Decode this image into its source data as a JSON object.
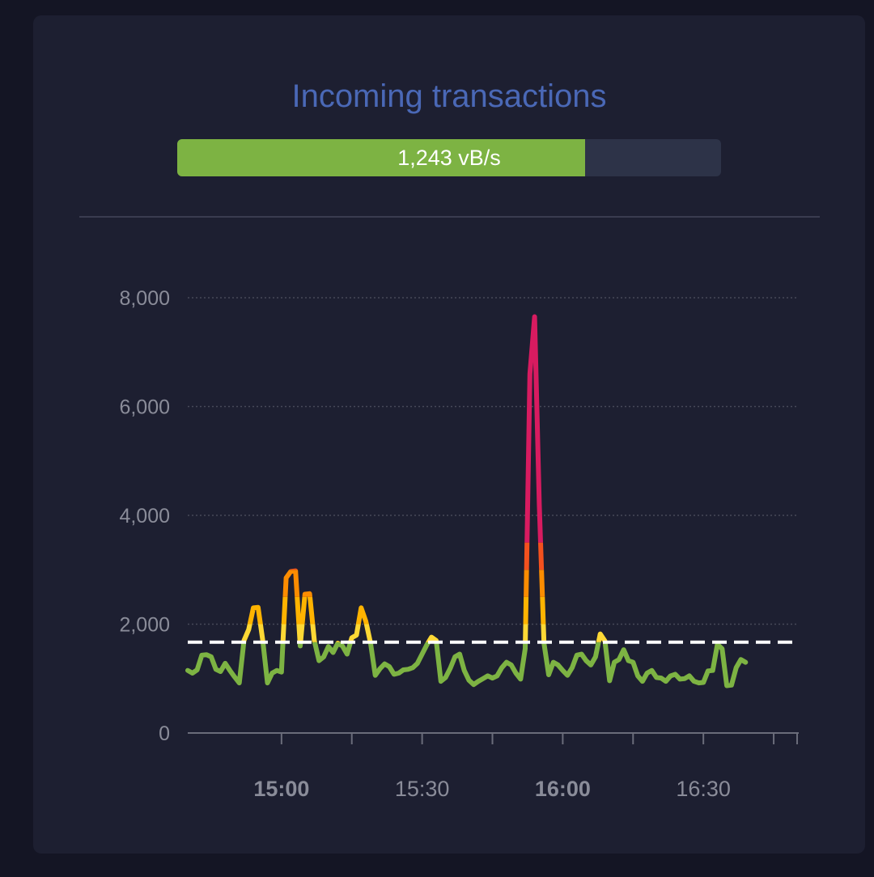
{
  "header": {
    "title": "Incoming transactions"
  },
  "rate": {
    "label": "1,243 vB/s",
    "fraction": 0.75
  },
  "chart_data": {
    "type": "line",
    "ylim": [
      0,
      8000
    ],
    "y_ticks": [
      {
        "value": 0,
        "label": "0"
      },
      {
        "value": 2000,
        "label": "2,000"
      },
      {
        "value": 4000,
        "label": "4,000"
      },
      {
        "value": 6000,
        "label": "6,000"
      },
      {
        "value": 8000,
        "label": "8,000"
      }
    ],
    "x_range": [
      "14:40",
      "16:50"
    ],
    "x_ticks": [
      {
        "time": "15:00",
        "label": "15:00",
        "bold": true
      },
      {
        "time": "15:30",
        "label": "15:30",
        "bold": false
      },
      {
        "time": "16:00",
        "label": "16:00",
        "bold": true
      },
      {
        "time": "16:30",
        "label": "16:30",
        "bold": false
      }
    ],
    "minor_ticks": [
      "15:15",
      "15:45",
      "16:15",
      "16:45"
    ],
    "threshold": 1670,
    "color_bands": [
      {
        "min": 0,
        "max": 1670,
        "color": "#7db343"
      },
      {
        "min": 1670,
        "max": 2000,
        "color": "#fdd835"
      },
      {
        "min": 2000,
        "max": 2500,
        "color": "#ffb300"
      },
      {
        "min": 2500,
        "max": 3000,
        "color": "#fb8c00"
      },
      {
        "min": 3000,
        "max": 3500,
        "color": "#f4511e"
      },
      {
        "min": 3500,
        "max": 9000,
        "color": "#d81b60"
      }
    ],
    "grid": true,
    "series": [
      {
        "points": [
          [
            "14:40",
            1150
          ],
          [
            "14:41",
            1100
          ],
          [
            "14:42",
            1160
          ],
          [
            "14:43",
            1430
          ],
          [
            "14:44",
            1440
          ],
          [
            "14:45",
            1400
          ],
          [
            "14:46",
            1170
          ],
          [
            "14:47",
            1130
          ],
          [
            "14:48",
            1280
          ],
          [
            "14:49",
            1150
          ],
          [
            "14:50",
            1030
          ],
          [
            "14:51",
            920
          ],
          [
            "14:52",
            1700
          ],
          [
            "14:53",
            1900
          ],
          [
            "14:54",
            2300
          ],
          [
            "14:55",
            2310
          ],
          [
            "14:56",
            1700
          ],
          [
            "14:57",
            920
          ],
          [
            "14:58",
            1100
          ],
          [
            "14:59",
            1150
          ],
          [
            "15:00",
            1120
          ],
          [
            "15:01",
            2850
          ],
          [
            "15:02",
            2970
          ],
          [
            "15:03",
            2980
          ],
          [
            "15:04",
            1600
          ],
          [
            "15:05",
            2550
          ],
          [
            "15:06",
            2560
          ],
          [
            "15:07",
            1700
          ],
          [
            "15:08",
            1330
          ],
          [
            "15:09",
            1400
          ],
          [
            "15:10",
            1590
          ],
          [
            "15:11",
            1480
          ],
          [
            "15:12",
            1650
          ],
          [
            "15:13",
            1600
          ],
          [
            "15:14",
            1450
          ],
          [
            "15:15",
            1750
          ],
          [
            "15:16",
            1800
          ],
          [
            "15:17",
            2300
          ],
          [
            "15:18",
            2050
          ],
          [
            "15:19",
            1650
          ],
          [
            "15:20",
            1060
          ],
          [
            "15:21",
            1180
          ],
          [
            "15:22",
            1270
          ],
          [
            "15:23",
            1220
          ],
          [
            "15:24",
            1080
          ],
          [
            "15:25",
            1100
          ],
          [
            "15:26",
            1160
          ],
          [
            "15:27",
            1170
          ],
          [
            "15:28",
            1200
          ],
          [
            "15:29",
            1280
          ],
          [
            "15:30",
            1450
          ],
          [
            "15:31",
            1620
          ],
          [
            "15:32",
            1760
          ],
          [
            "15:33",
            1700
          ],
          [
            "15:34",
            950
          ],
          [
            "15:35",
            1020
          ],
          [
            "15:36",
            1190
          ],
          [
            "15:37",
            1400
          ],
          [
            "15:38",
            1450
          ],
          [
            "15:39",
            1150
          ],
          [
            "15:40",
            970
          ],
          [
            "15:41",
            890
          ],
          [
            "15:42",
            950
          ],
          [
            "15:43",
            1000
          ],
          [
            "15:44",
            1050
          ],
          [
            "15:45",
            1010
          ],
          [
            "15:46",
            1050
          ],
          [
            "15:47",
            1200
          ],
          [
            "15:48",
            1300
          ],
          [
            "15:49",
            1250
          ],
          [
            "15:50",
            1100
          ],
          [
            "15:51",
            990
          ],
          [
            "15:52",
            1550
          ],
          [
            "15:53",
            6600
          ],
          [
            "15:54",
            7650
          ],
          [
            "15:55",
            4200
          ],
          [
            "15:56",
            1650
          ],
          [
            "15:57",
            1070
          ],
          [
            "15:58",
            1300
          ],
          [
            "15:59",
            1250
          ],
          [
            "16:00",
            1150
          ],
          [
            "16:01",
            1060
          ],
          [
            "16:02",
            1200
          ],
          [
            "16:03",
            1430
          ],
          [
            "16:04",
            1450
          ],
          [
            "16:05",
            1330
          ],
          [
            "16:06",
            1250
          ],
          [
            "16:07",
            1400
          ],
          [
            "16:08",
            1820
          ],
          [
            "16:09",
            1690
          ],
          [
            "16:10",
            960
          ],
          [
            "16:11",
            1300
          ],
          [
            "16:12",
            1350
          ],
          [
            "16:13",
            1530
          ],
          [
            "16:14",
            1330
          ],
          [
            "16:15",
            1300
          ],
          [
            "16:16",
            1050
          ],
          [
            "16:17",
            950
          ],
          [
            "16:18",
            1100
          ],
          [
            "16:19",
            1150
          ],
          [
            "16:20",
            1020
          ],
          [
            "16:21",
            1010
          ],
          [
            "16:22",
            950
          ],
          [
            "16:23",
            1050
          ],
          [
            "16:24",
            1080
          ],
          [
            "16:25",
            990
          ],
          [
            "16:26",
            1000
          ],
          [
            "16:27",
            1050
          ],
          [
            "16:28",
            950
          ],
          [
            "16:29",
            920
          ],
          [
            "16:30",
            930
          ],
          [
            "16:31",
            1140
          ],
          [
            "16:32",
            1150
          ],
          [
            "16:33",
            1630
          ],
          [
            "16:34",
            1550
          ],
          [
            "16:35",
            870
          ],
          [
            "16:36",
            880
          ],
          [
            "16:37",
            1200
          ],
          [
            "16:38",
            1350
          ],
          [
            "16:39",
            1300
          ]
        ]
      }
    ]
  }
}
